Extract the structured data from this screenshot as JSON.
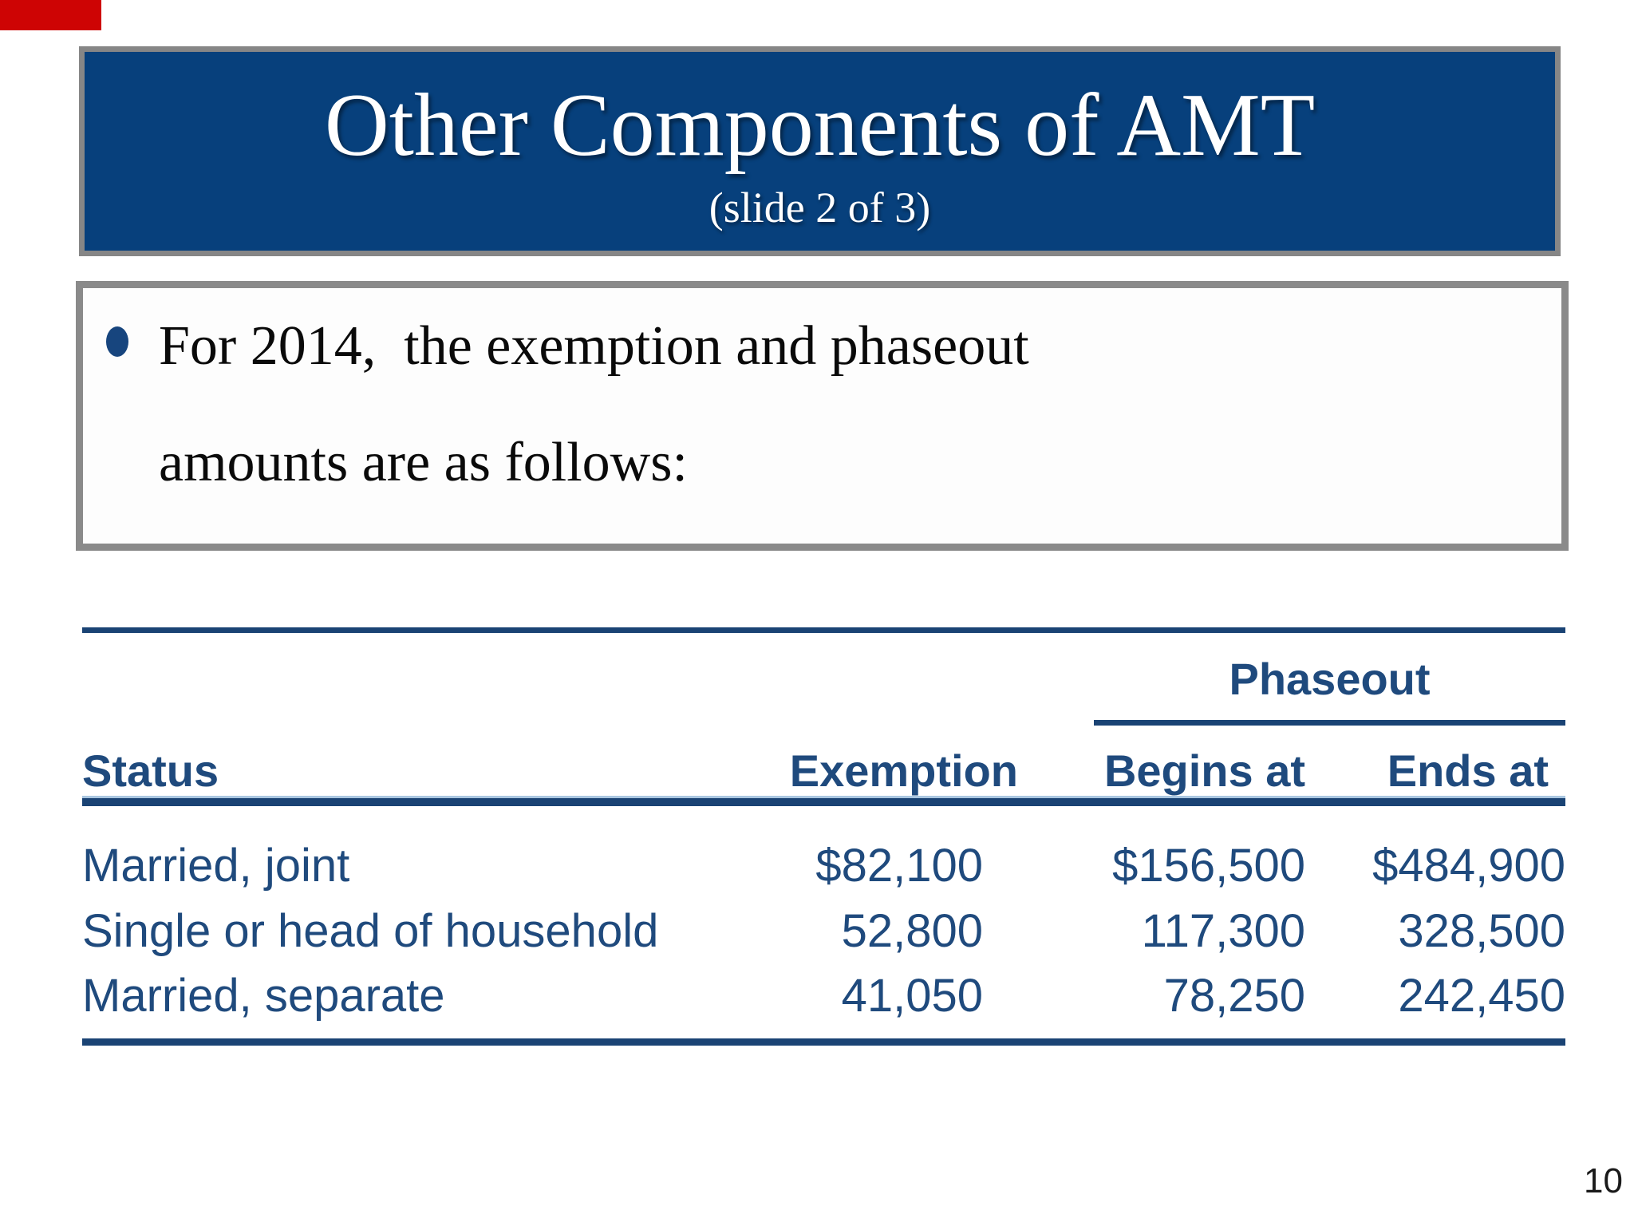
{
  "slide": {
    "title": "Other Components of AMT",
    "subtitle": "(slide 2 of 3)",
    "bullet_text": "For 2014,  the exemption and phaseout\namounts are as follows:",
    "table": {
      "group_header": "Phaseout",
      "columns": [
        "Status",
        "Exemption",
        "Begins at",
        "Ends at"
      ],
      "rows": [
        {
          "cells": [
            "Married, joint",
            "$82,100",
            "$156,500",
            "$484,900"
          ]
        },
        {
          "cells": [
            "Single or head of household",
            "52,800",
            "117,300",
            "328,500"
          ]
        },
        {
          "cells": [
            "Married, separate",
            "41,050",
            "78,250",
            "242,450"
          ]
        }
      ]
    },
    "page_number": "10",
    "colors": {
      "title_bar_navy": "#07407C",
      "table_blue": "#1F4A7D",
      "rule_blue": "#1A4374",
      "rule_light_edge": "#A9C6E0",
      "border_gray": "#868686",
      "corner_marker_red": "#CE0404"
    }
  }
}
